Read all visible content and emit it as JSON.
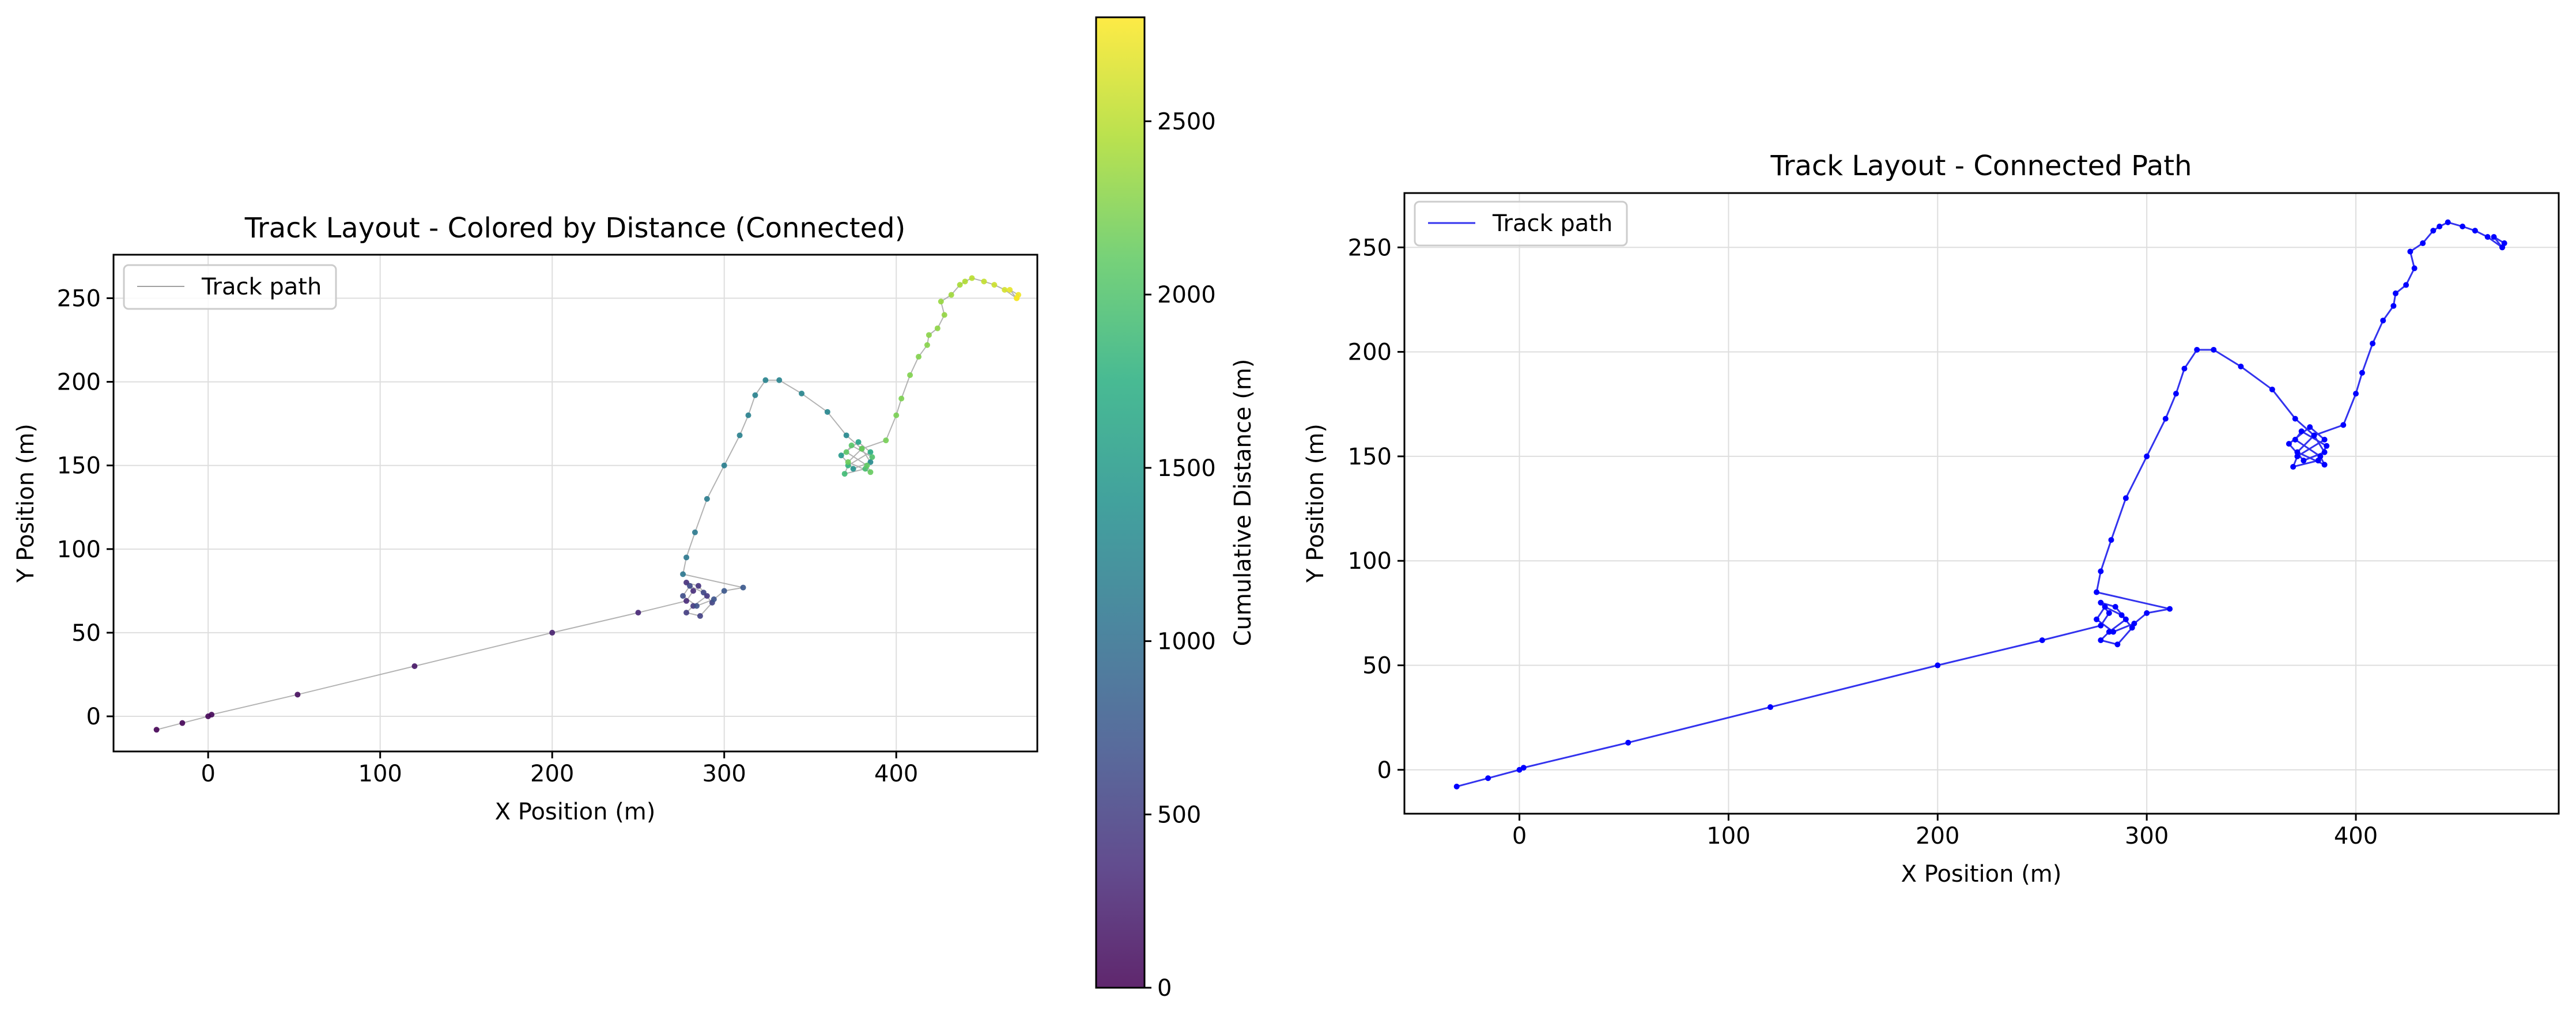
{
  "chart_data": [
    {
      "type": "scatter",
      "title": "Track Layout - Colored by Distance (Connected)",
      "xlabel": "X Position (m)",
      "ylabel": "Y Position (m)",
      "xlim": [
        -55,
        482
      ],
      "ylim": [
        -21,
        276
      ],
      "xticks": [
        0,
        100,
        200,
        300,
        400
      ],
      "yticks": [
        0,
        50,
        100,
        150,
        200,
        250
      ],
      "grid": true,
      "legend": {
        "position": "top-left",
        "entries": [
          "Track path"
        ]
      },
      "line_color": "#a0a0a0",
      "colormap": "viridis",
      "colorbar": {
        "label": "Cumulative Distance (m)",
        "range": [
          0,
          2800
        ],
        "ticks": [
          0,
          500,
          1000,
          1500,
          2000,
          2500
        ]
      },
      "series": [
        {
          "name": "Track path",
          "x": [
            -30,
            -15,
            0,
            2,
            52,
            120,
            200,
            250,
            278,
            282,
            278,
            285,
            290,
            282,
            278,
            286,
            293,
            288,
            280,
            276,
            284,
            294,
            300,
            311,
            276,
            278,
            283,
            290,
            300,
            309,
            314,
            318,
            324,
            332,
            345,
            360,
            371,
            380,
            385,
            375,
            368,
            378,
            385,
            372,
            370,
            382,
            386,
            374,
            371,
            383,
            385,
            372,
            380,
            394,
            400,
            403,
            408,
            413,
            418,
            419,
            424,
            428,
            426,
            432,
            437,
            440,
            444,
            451,
            457,
            463,
            470,
            466,
            471,
            470
          ],
          "y": [
            -8,
            -4,
            0,
            1,
            13,
            30,
            50,
            62,
            69,
            75,
            80,
            78,
            72,
            66,
            62,
            60,
            68,
            74,
            78,
            72,
            66,
            70,
            75,
            77,
            85,
            95,
            110,
            130,
            150,
            168,
            180,
            192,
            201,
            201,
            193,
            182,
            168,
            160,
            152,
            148,
            156,
            164,
            158,
            150,
            145,
            148,
            155,
            162,
            158,
            150,
            146,
            152,
            160,
            165,
            180,
            190,
            204,
            215,
            222,
            228,
            232,
            240,
            248,
            252,
            258,
            260,
            262,
            260,
            258,
            255,
            250,
            255,
            252,
            250
          ],
          "distance": [
            0,
            16,
            31,
            33,
            85,
            155,
            237,
            288,
            320,
            345,
            375,
            400,
            430,
            460,
            490,
            520,
            550,
            580,
            610,
            640,
            670,
            700,
            730,
            760,
            1100,
            1112,
            1128,
            1150,
            1173,
            1193,
            1205,
            1217,
            1226,
            1234,
            1250,
            1268,
            1285,
            1300,
            1320,
            1400,
            1500,
            1600,
            1700,
            1800,
            1900,
            1950,
            2000,
            2050,
            2080,
            2100,
            2130,
            2160,
            2180,
            2200,
            2215,
            2230,
            2245,
            2260,
            2275,
            2290,
            2310,
            2330,
            2350,
            2380,
            2420,
            2460,
            2500,
            2540,
            2580,
            2620,
            2660,
            2700,
            2740,
            2780
          ]
        }
      ]
    },
    {
      "type": "scatter",
      "title": "Track Layout - Connected Path",
      "xlabel": "X Position (m)",
      "ylabel": "Y Position (m)",
      "xlim": [
        -55,
        497
      ],
      "ylim": [
        -21,
        276
      ],
      "xticks": [
        0,
        100,
        200,
        300,
        400
      ],
      "yticks": [
        0,
        50,
        100,
        150,
        200,
        250
      ],
      "grid": true,
      "legend": {
        "position": "top-left",
        "entries": [
          "Track path"
        ]
      },
      "point_color": "#0000ff",
      "line_color": "#3333ee",
      "series": [
        {
          "name": "Track path",
          "x": [
            -30,
            -15,
            0,
            2,
            52,
            120,
            200,
            250,
            278,
            282,
            278,
            285,
            290,
            282,
            278,
            286,
            293,
            288,
            280,
            276,
            284,
            294,
            300,
            311,
            276,
            278,
            283,
            290,
            300,
            309,
            314,
            318,
            324,
            332,
            345,
            360,
            371,
            380,
            385,
            375,
            368,
            378,
            385,
            372,
            370,
            382,
            386,
            374,
            371,
            383,
            385,
            372,
            380,
            394,
            400,
            403,
            408,
            413,
            418,
            419,
            424,
            428,
            426,
            432,
            437,
            440,
            444,
            451,
            457,
            463,
            470,
            466,
            471,
            470
          ],
          "y": [
            -8,
            -4,
            0,
            1,
            13,
            30,
            50,
            62,
            69,
            75,
            80,
            78,
            72,
            66,
            62,
            60,
            68,
            74,
            78,
            72,
            66,
            70,
            75,
            77,
            85,
            95,
            110,
            130,
            150,
            168,
            180,
            192,
            201,
            201,
            193,
            182,
            168,
            160,
            152,
            148,
            156,
            164,
            158,
            150,
            145,
            148,
            155,
            162,
            158,
            150,
            146,
            152,
            160,
            165,
            180,
            190,
            204,
            215,
            222,
            228,
            232,
            240,
            248,
            252,
            258,
            260,
            262,
            260,
            258,
            255,
            250,
            255,
            252,
            250
          ]
        }
      ]
    }
  ]
}
